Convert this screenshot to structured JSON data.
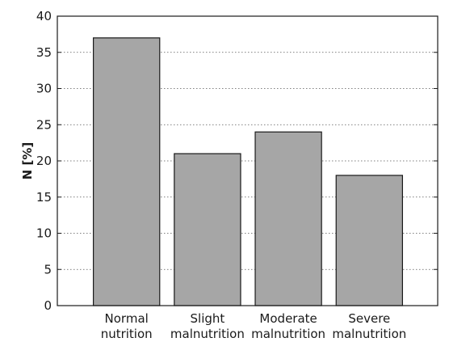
{
  "chart_data": {
    "type": "bar",
    "categories": [
      [
        "Normal",
        "nutrition"
      ],
      [
        "Slight",
        "malnutrition"
      ],
      [
        "Moderate",
        "malnutrition"
      ],
      [
        "Severe",
        "malnutrition"
      ]
    ],
    "values": [
      37,
      21,
      24,
      18
    ],
    "title": "",
    "xlabel": "",
    "ylabel": "N [%]",
    "ylim": [
      0,
      40
    ],
    "yticks": [
      0,
      5,
      10,
      15,
      20,
      25,
      30,
      35,
      40
    ],
    "grid": "horizontal-dotted",
    "bar_color": "#a6a6a6",
    "bar_edge_color": "#1a1a1a"
  }
}
